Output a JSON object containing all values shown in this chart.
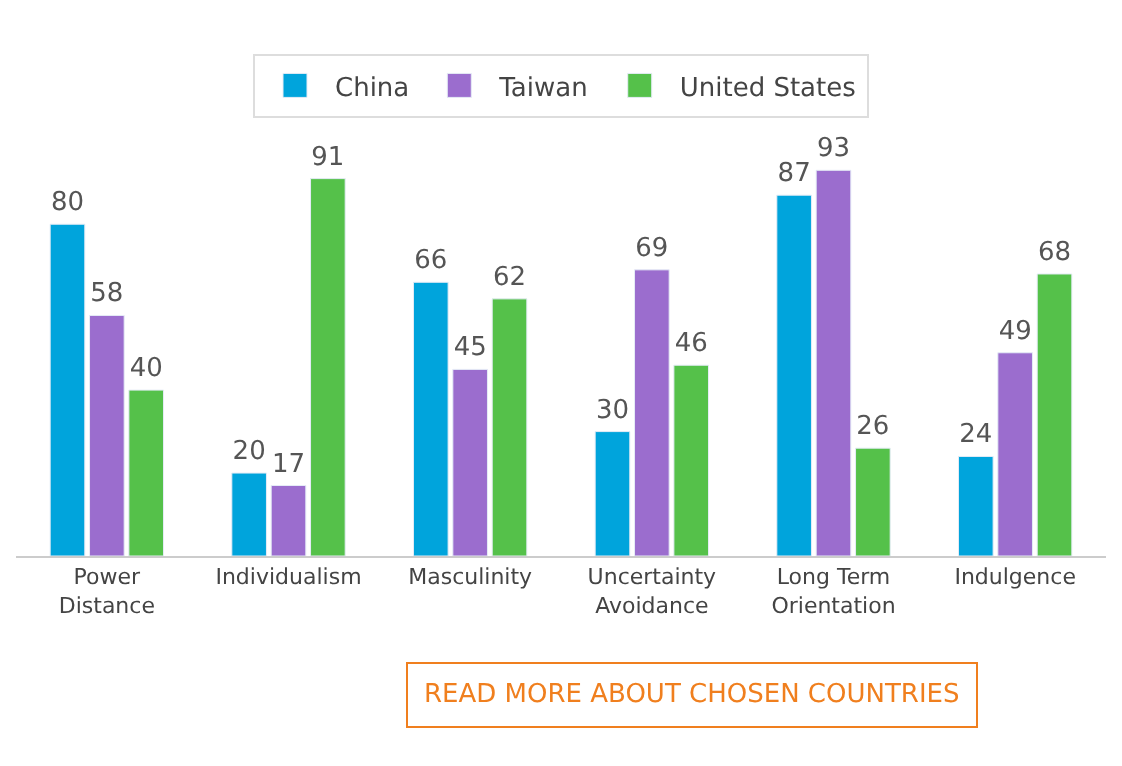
{
  "chart_data": {
    "type": "bar",
    "categories": [
      "Power Distance",
      "Individualism",
      "Masculinity",
      "Uncertainty Avoidance",
      "Long Term Orientation",
      "Indulgence"
    ],
    "series": [
      {
        "name": "China",
        "color": "#00a4dc",
        "values": [
          80,
          20,
          66,
          30,
          87,
          24
        ]
      },
      {
        "name": "Taiwan",
        "color": "#9b6dce",
        "values": [
          58,
          17,
          45,
          69,
          93,
          49
        ]
      },
      {
        "name": "United States",
        "color": "#55c14a",
        "values": [
          40,
          91,
          62,
          46,
          26,
          68
        ]
      }
    ],
    "data_labels": true,
    "legend": "top",
    "annotations": [
      "READ MORE ABOUT CHOSEN COUNTRIES"
    ]
  }
}
